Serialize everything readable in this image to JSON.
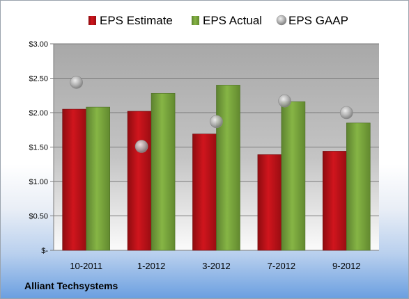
{
  "company": "Alliant Techsystems",
  "colors": {
    "estimate": "#d0151d",
    "actual": "#86b545",
    "gaap": "#b0b0b0"
  },
  "chart_data": {
    "type": "bar",
    "categories": [
      "10-2011",
      "1-2012",
      "3-2012",
      "7-2012",
      "9-2012"
    ],
    "series": [
      {
        "name": "EPS Estimate",
        "kind": "bar",
        "values": [
          2.05,
          2.02,
          1.69,
          1.39,
          1.44
        ]
      },
      {
        "name": "EPS Actual",
        "kind": "bar",
        "values": [
          2.08,
          2.28,
          2.4,
          2.16,
          1.85
        ]
      },
      {
        "name": "EPS GAAP",
        "kind": "marker",
        "values": [
          2.44,
          1.51,
          1.87,
          2.17,
          2.0
        ]
      }
    ],
    "ylim": [
      0,
      3
    ],
    "yticks": [
      "$-",
      "$0.50",
      "$1.00",
      "$1.50",
      "$2.00",
      "$2.50",
      "$3.00"
    ],
    "ytick_values": [
      0,
      0.5,
      1.0,
      1.5,
      2.0,
      2.5,
      3.0
    ],
    "legend": "top",
    "grid": true
  }
}
